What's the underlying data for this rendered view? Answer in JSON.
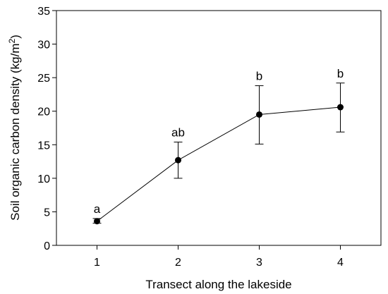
{
  "chart_data": {
    "type": "line",
    "title": "",
    "xlabel": "Transect along the lakeside",
    "ylabel_main": "Soil organic carbon density (kg/m",
    "ylabel_sup": "2",
    "ylabel_close": ")",
    "x": [
      1,
      2,
      3,
      4
    ],
    "xticks": [
      "1",
      "2",
      "3",
      "4"
    ],
    "xlim": [
      0.5,
      4.5
    ],
    "ylim": [
      0,
      35
    ],
    "yticks": [
      "0",
      "5",
      "10",
      "15",
      "20",
      "25",
      "30",
      "35"
    ],
    "grid": false,
    "series": [
      {
        "values": [
          3.6,
          12.7,
          19.5,
          20.6
        ],
        "error_upper": [
          4.0,
          15.4,
          23.8,
          24.2
        ],
        "error_lower": [
          3.3,
          10.0,
          15.1,
          16.9
        ],
        "annotations": [
          "a",
          "ab",
          "b",
          "b"
        ],
        "color": "#000000"
      }
    ]
  }
}
